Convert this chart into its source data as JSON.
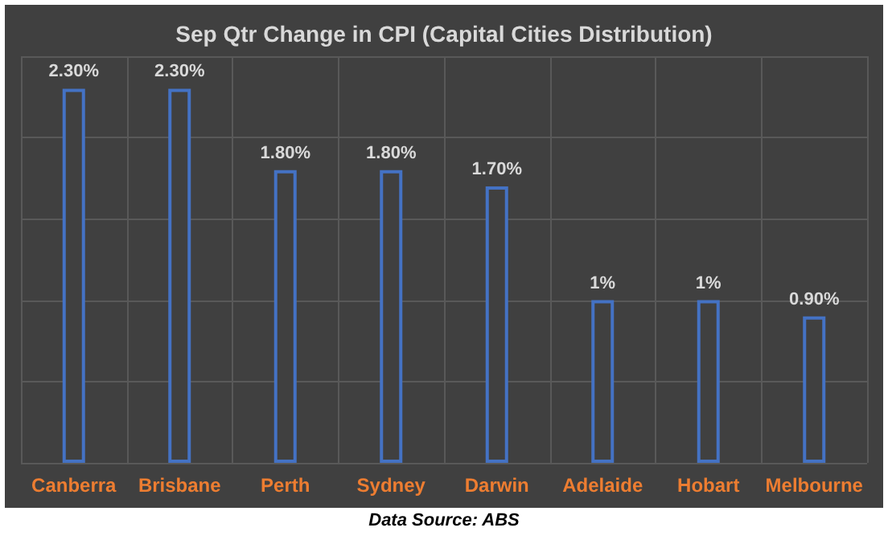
{
  "chart_data": {
    "type": "bar",
    "title": "Sep Qtr Change in CPI (Capital Cities Distribution)",
    "categories": [
      "Canberra",
      "Brisbane",
      "Perth",
      "Sydney",
      "Darwin",
      "Adelaide",
      "Hobart",
      "Melbourne"
    ],
    "values": [
      2.3,
      2.3,
      1.8,
      1.8,
      1.7,
      1,
      1,
      0.9
    ],
    "value_labels": [
      "2.30%",
      "2.30%",
      "1.80%",
      "1.80%",
      "1.70%",
      "1%",
      "1%",
      "0.90%"
    ],
    "color": "#4472c4",
    "ylim": [
      0,
      2.5
    ],
    "yticks": [
      {
        "value": 0,
        "label": null
      },
      {
        "value": 0.5,
        "label": null
      },
      {
        "value": 1,
        "label": null
      },
      {
        "value": 1.5,
        "label": null
      },
      {
        "value": 2,
        "label": null
      },
      {
        "value": 2.5,
        "label": null
      }
    ],
    "tick_labels": "x",
    "grid": true,
    "annotations": [
      "Data Source: ABS"
    ]
  }
}
